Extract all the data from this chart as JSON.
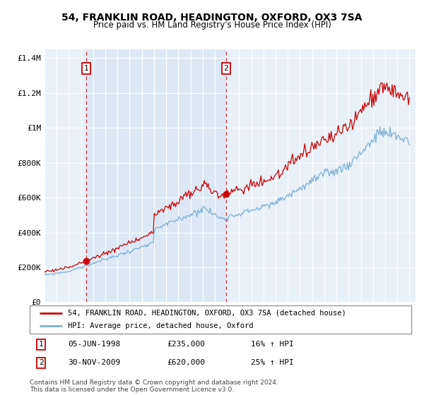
{
  "title": "54, FRANKLIN ROAD, HEADINGTON, OXFORD, OX3 7SA",
  "subtitle": "Price paid vs. HM Land Registry's House Price Index (HPI)",
  "legend_line1": "54, FRANKLIN ROAD, HEADINGTON, OXFORD, OX3 7SA (detached house)",
  "legend_line2": "HPI: Average price, detached house, Oxford",
  "purchase1_date": "05-JUN-1998",
  "purchase1_price": 235000,
  "purchase1_year": 1998.42,
  "purchase2_date": "30-NOV-2009",
  "purchase2_price": 620000,
  "purchase2_year": 2009.92,
  "purchase1_hpi": "16% ↑ HPI",
  "purchase2_hpi": "25% ↑ HPI",
  "footnote": "Contains HM Land Registry data © Crown copyright and database right 2024.\nThis data is licensed under the Open Government Licence v3.0.",
  "red_color": "#cc0000",
  "blue_color": "#7bafd4",
  "shade_color": "#dce8f5",
  "bg_color": "#e8f0f8",
  "grid_color": "#ffffff",
  "ylim": [
    0,
    1450000
  ],
  "yticks": [
    0,
    200000,
    400000,
    600000,
    800000,
    1000000,
    1200000,
    1400000
  ],
  "ytick_labels": [
    "£0",
    "£200K",
    "£400K",
    "£600K",
    "£800K",
    "£1M",
    "£1.2M",
    "£1.4M"
  ],
  "xlim_start": 1995.0,
  "xlim_end": 2025.5
}
